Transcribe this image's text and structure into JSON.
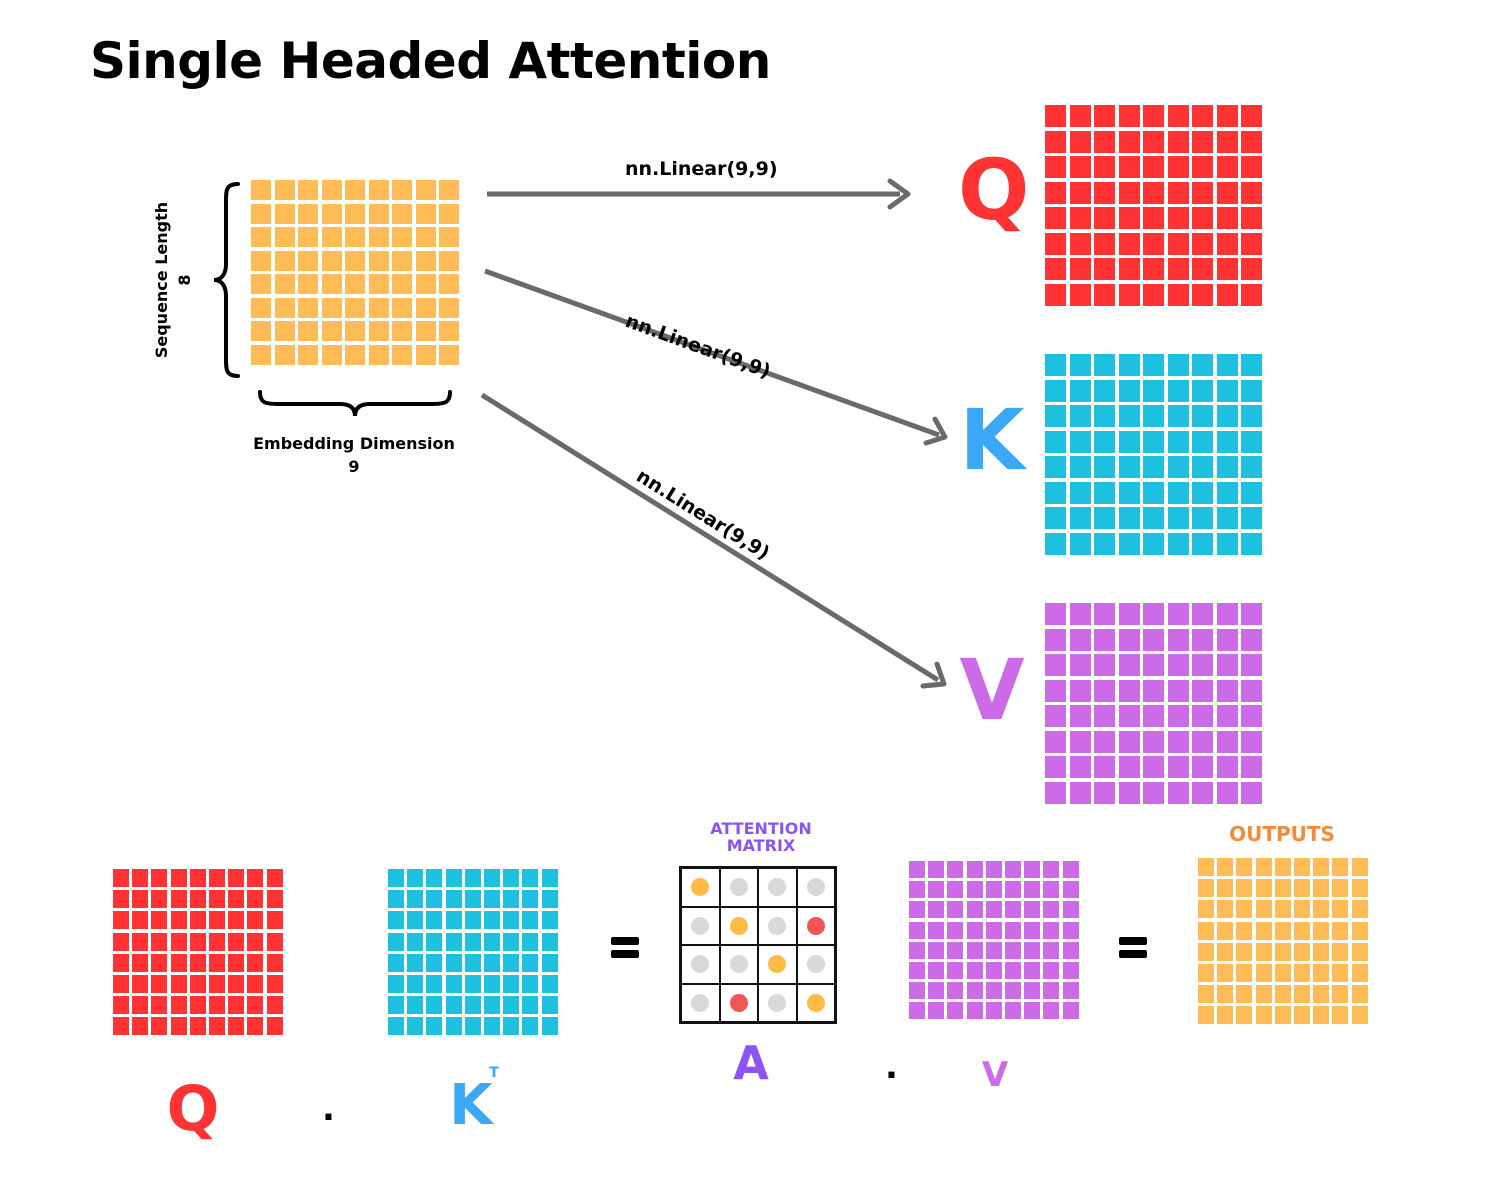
{
  "title": "Single Headed Attention",
  "colors": {
    "input": "#FFBB55",
    "query": "#FF3333",
    "key": "#1EC0E0",
    "value": "#CC6AE8",
    "output": "#FFBB55",
    "arrow": "#6a6a6a",
    "attention_label": "#8B55F2",
    "outputs_label": "#F28C3C",
    "A_label": "#8B55F2",
    "K_label": "#3BA8F5",
    "dot_grey": "#D9D9D9",
    "dot_yellow": "#FFBB44",
    "dot_red": "#F25555"
  },
  "input_matrix": {
    "rows": 8,
    "cols": 9,
    "seq_label": "Sequence Length",
    "seq_value": "8",
    "emb_label": "Embedding Dimension",
    "emb_value": "9"
  },
  "projections": [
    {
      "label": "nn.Linear(9,9)",
      "target": "Q"
    },
    {
      "label": "nn.Linear(9,9)",
      "target": "K"
    },
    {
      "label": "nn.Linear(9,9)",
      "target": "V"
    }
  ],
  "qkv": {
    "q_letter": "Q",
    "k_letter": "K",
    "v_letter": "V",
    "rows": 8,
    "cols": 9
  },
  "equation": {
    "q_letter": "Q",
    "k_letter": "K",
    "k_superscript": "T",
    "dot": ".",
    "equals": "=",
    "attention_title_1": "ATTENTION",
    "attention_title_2": "MATRIX",
    "a_letter": "A",
    "v_letter": "V",
    "outputs_title": "OUTPUTS",
    "attention_cells": [
      [
        "yellow",
        "grey",
        "grey",
        "grey"
      ],
      [
        "grey",
        "yellow",
        "grey",
        "red"
      ],
      [
        "grey",
        "grey",
        "yellow",
        "grey"
      ],
      [
        "grey",
        "red",
        "grey",
        "yellow"
      ]
    ]
  },
  "icons": {
    "seq_brace": "left-curly-brace-icon",
    "emb_brace": "bottom-curly-brace-icon",
    "arrows": "arrow-right-icon"
  }
}
